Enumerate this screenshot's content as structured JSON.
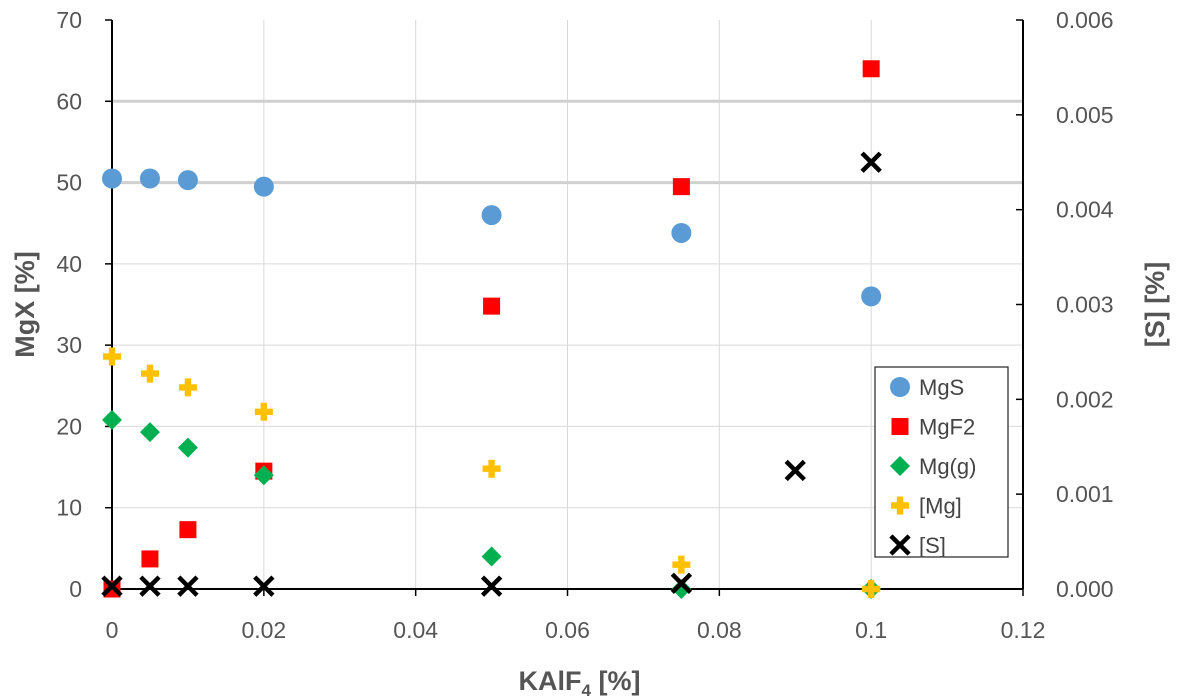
{
  "chart_data": {
    "type": "scatter",
    "xlabel_main": "KAlF",
    "xlabel_sub": "4",
    "xlabel_tail": " [%]",
    "ylabel": "MgX [%]",
    "y2label": "[S] [%]",
    "xlim": [
      0,
      0.12
    ],
    "ylim": [
      0,
      70
    ],
    "y2lim": [
      0,
      0.006
    ],
    "xticks": [
      "0",
      "0.02",
      "0.04",
      "0.06",
      "0.08",
      "0.1",
      "0.12"
    ],
    "yticks": [
      "0",
      "10",
      "20",
      "30",
      "40",
      "50",
      "60",
      "70"
    ],
    "y2ticks": [
      "0.000",
      "0.001",
      "0.002",
      "0.003",
      "0.004",
      "0.005",
      "0.006"
    ],
    "grid": true,
    "legend_position": "right",
    "series": [
      {
        "name": "MgS",
        "axis": "left",
        "marker": "circle",
        "color": "#5b9bd5",
        "points": [
          [
            0,
            50.5
          ],
          [
            0.005,
            50.5
          ],
          [
            0.01,
            50.3
          ],
          [
            0.02,
            49.5
          ],
          [
            0.05,
            46.0
          ],
          [
            0.075,
            43.8
          ],
          [
            0.1,
            36.0
          ]
        ]
      },
      {
        "name": "MgF2",
        "axis": "left",
        "marker": "square",
        "color": "#ff0000",
        "points": [
          [
            0,
            0
          ],
          [
            0.005,
            3.7
          ],
          [
            0.01,
            7.3
          ],
          [
            0.02,
            14.5
          ],
          [
            0.05,
            34.8
          ],
          [
            0.075,
            49.5
          ],
          [
            0.1,
            64.0
          ]
        ]
      },
      {
        "name": "Mg(g)",
        "axis": "left",
        "marker": "diamond",
        "color": "#00b050",
        "points": [
          [
            0,
            20.8
          ],
          [
            0.005,
            19.3
          ],
          [
            0.01,
            17.4
          ],
          [
            0.02,
            14.0
          ],
          [
            0.05,
            4.0
          ],
          [
            0.075,
            0
          ],
          [
            0.1,
            0
          ]
        ]
      },
      {
        "name": "[Mg]",
        "axis": "left",
        "marker": "plus",
        "color": "#ffc000",
        "points": [
          [
            0,
            28.6
          ],
          [
            0.005,
            26.5
          ],
          [
            0.01,
            24.8
          ],
          [
            0.02,
            21.8
          ],
          [
            0.05,
            14.8
          ],
          [
            0.075,
            3.0
          ],
          [
            0.1,
            0
          ]
        ]
      },
      {
        "name": "[S]",
        "axis": "right",
        "marker": "x",
        "color": "#000000",
        "points": [
          [
            0,
            3e-05
          ],
          [
            0.005,
            3e-05
          ],
          [
            0.01,
            3e-05
          ],
          [
            0.02,
            3e-05
          ],
          [
            0.05,
            3e-05
          ],
          [
            0.075,
            6e-05
          ],
          [
            0.09,
            0.00125
          ],
          [
            0.1,
            0.0045
          ]
        ]
      }
    ]
  }
}
